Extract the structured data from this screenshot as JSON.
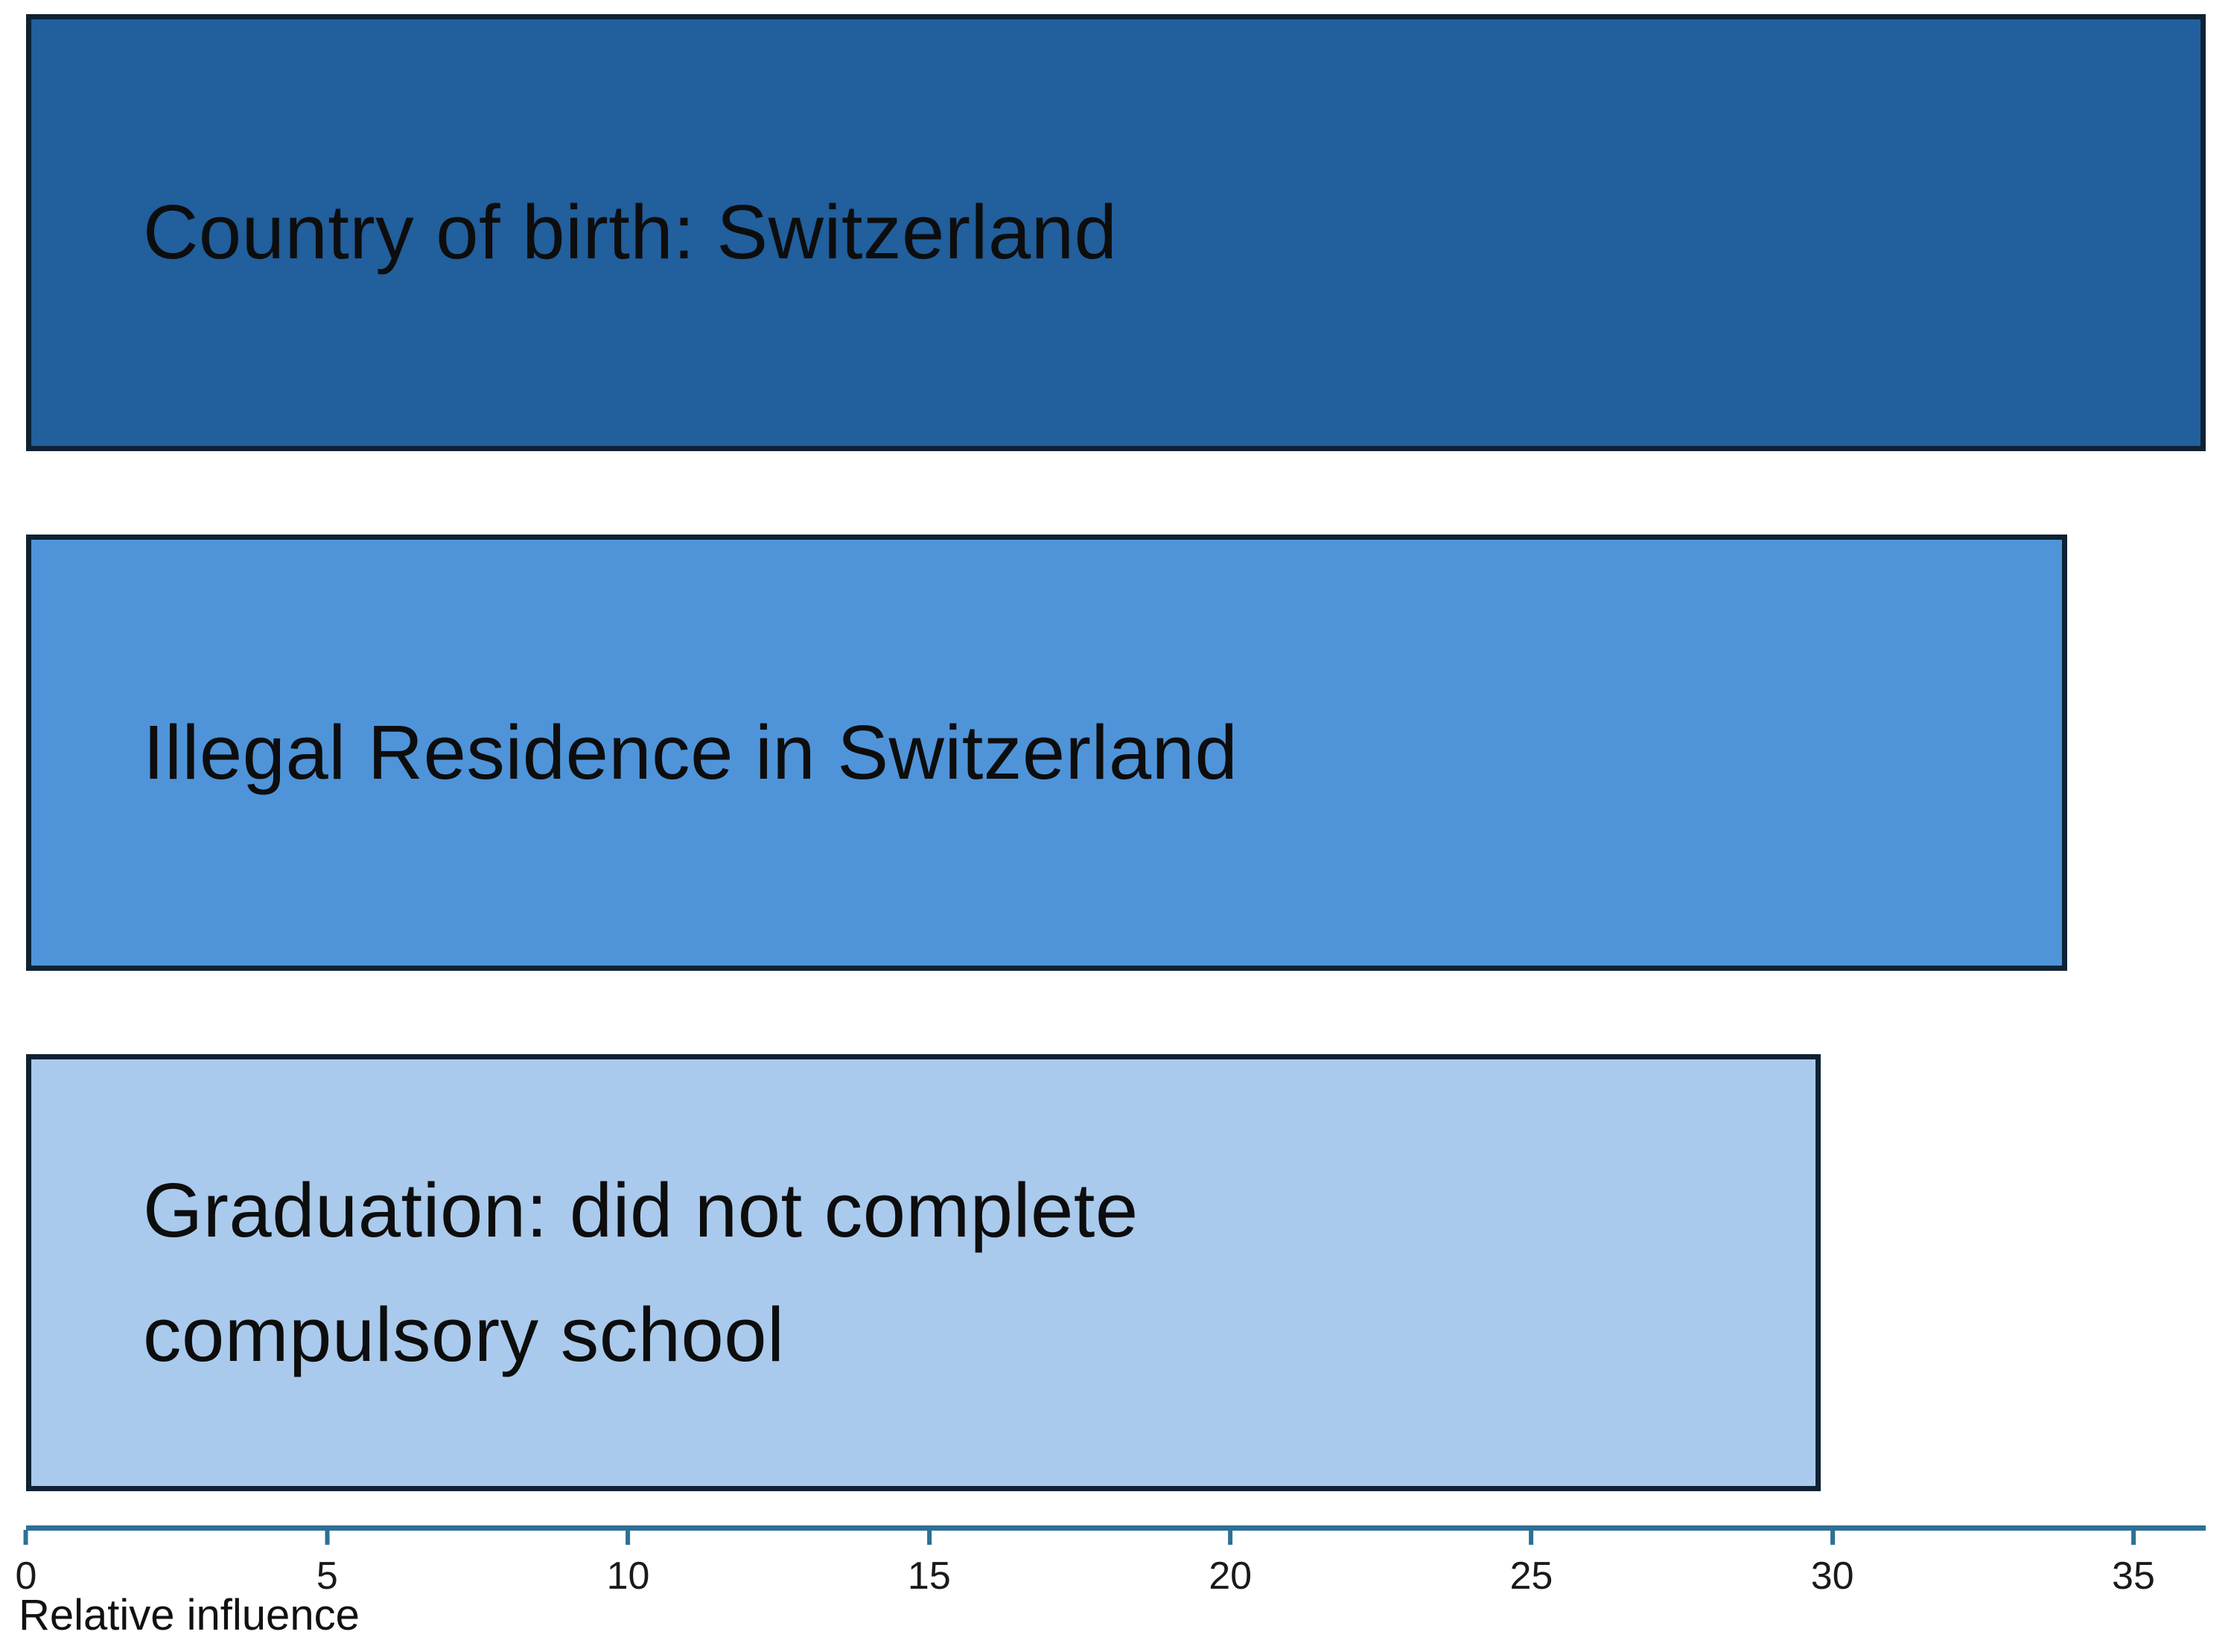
{
  "chart_data": {
    "type": "bar",
    "orientation": "horizontal",
    "title": "",
    "xlabel": "Relative influence",
    "ylabel": "",
    "categories": [
      "Country of birth: Switzerland",
      "Illegal Residence in Switzerland",
      "Graduation: did not complete compulsory school"
    ],
    "values": [
      36.2,
      33.9,
      29.8
    ],
    "xlim": [
      0,
      36.2
    ],
    "xticks": [
      0,
      5,
      10,
      15,
      20,
      25,
      30,
      35
    ],
    "grid": "off",
    "legend": "none",
    "bar_colors": [
      "#215f9d",
      "#4f94d9",
      "#a9caec"
    ],
    "bar_border_color": "#0e2233",
    "axis_color": "#2d7095",
    "tick_label_color": "#1a1a1a",
    "label_color": "#0d0d0d",
    "background_color": "#ffffff"
  }
}
